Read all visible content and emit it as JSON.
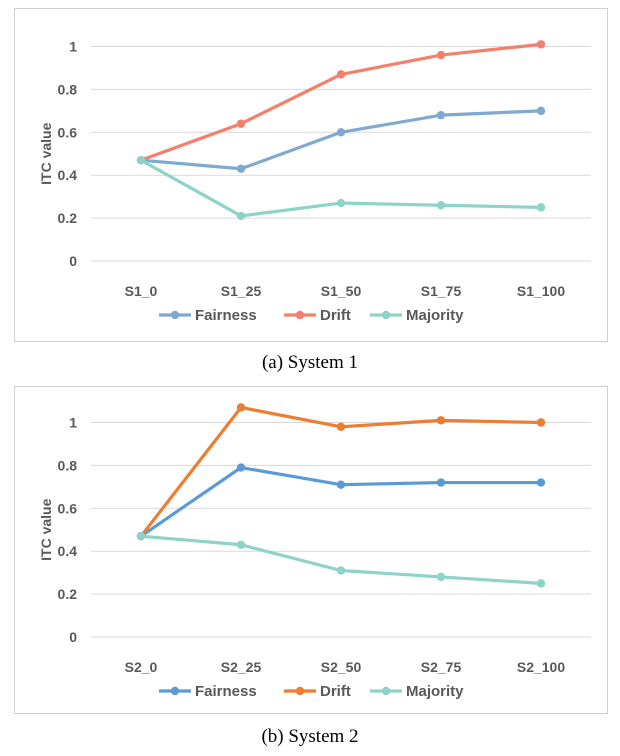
{
  "chart_data": [
    {
      "type": "line",
      "caption": "(a) System 1",
      "ylabel": "ITC value",
      "xlabel": "",
      "categories": [
        "S1_0",
        "S1_25",
        "S1_50",
        "S1_75",
        "S1_100"
      ],
      "yticks": [
        "0",
        "0.2",
        "0.4",
        "0.6",
        "0.8",
        "1"
      ],
      "ylim": [
        0,
        1.1
      ],
      "grid": true,
      "legend_position": "bottom",
      "series": [
        {
          "name": "Fairness",
          "color": "#7FA9CF",
          "values": [
            0.47,
            0.43,
            0.6,
            0.68,
            0.7
          ]
        },
        {
          "name": "Drift",
          "color": "#F4806C",
          "values": [
            0.47,
            0.64,
            0.87,
            0.96,
            1.01
          ]
        },
        {
          "name": "Majority",
          "color": "#8DD3C7",
          "values": [
            0.47,
            0.21,
            0.27,
            0.26,
            0.25
          ]
        }
      ]
    },
    {
      "type": "line",
      "caption": "(b) System 2",
      "ylabel": "ITC value",
      "xlabel": "",
      "categories": [
        "S2_0",
        "S2_25",
        "S2_50",
        "S2_75",
        "S2_100"
      ],
      "yticks": [
        "0",
        "0.2",
        "0.4",
        "0.6",
        "0.8",
        "1"
      ],
      "ylim": [
        0,
        1.1
      ],
      "grid": true,
      "legend_position": "bottom",
      "series": [
        {
          "name": "Fairness",
          "color": "#5B9BD5",
          "values": [
            0.47,
            0.79,
            0.71,
            0.72,
            0.72
          ]
        },
        {
          "name": "Drift",
          "color": "#ED7D31",
          "values": [
            0.47,
            1.07,
            0.98,
            1.01,
            1.0
          ]
        },
        {
          "name": "Majority",
          "color": "#8DD3C7",
          "values": [
            0.47,
            0.43,
            0.31,
            0.28,
            0.25
          ]
        }
      ]
    }
  ]
}
